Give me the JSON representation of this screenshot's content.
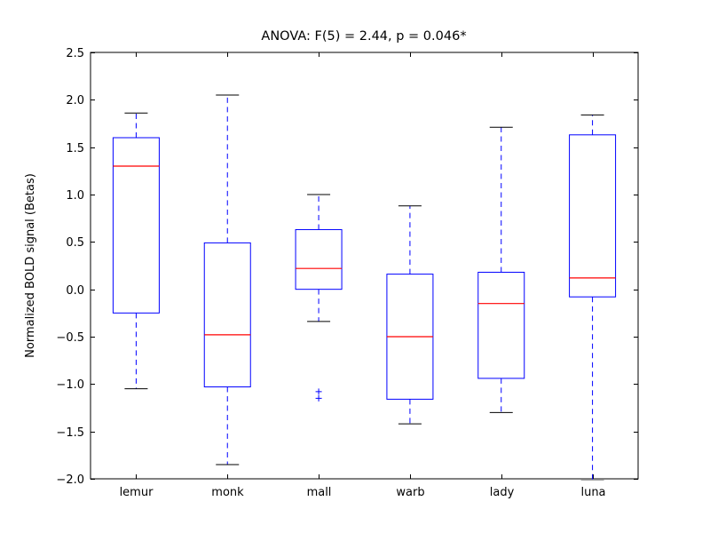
{
  "chart_data": {
    "type": "box",
    "title": "ANOVA: F(5) = 2.44, p = 0.046*",
    "xlabel": "",
    "ylabel": "Normalized BOLD signal (Betas)",
    "categories": [
      "lemur",
      "monk",
      "mall",
      "warb",
      "lady",
      "luna"
    ],
    "ylim": [
      -2.0,
      2.5
    ],
    "ytick_values": [
      -2.0,
      -1.5,
      -1.0,
      -0.5,
      0.0,
      0.5,
      1.0,
      1.5,
      2.0,
      2.5
    ],
    "ytick_labels": [
      "−2.0",
      "−1.5",
      "−1.0",
      "−0.5",
      "0.0",
      "0.5",
      "1.0",
      "1.5",
      "2.0",
      "2.5"
    ],
    "grid": false,
    "legend": null,
    "boxes": [
      {
        "label": "lemur",
        "whislo": -1.05,
        "q1": -0.25,
        "med": 1.3,
        "q3": 1.6,
        "whishi": 1.86,
        "fliers": []
      },
      {
        "label": "monk",
        "whislo": -1.85,
        "q1": -1.03,
        "med": -0.48,
        "q3": 0.49,
        "whishi": 2.05,
        "fliers": []
      },
      {
        "label": "mall",
        "whislo": -0.34,
        "q1": 0.0,
        "med": 0.22,
        "q3": 0.63,
        "whishi": 1.0,
        "fliers": [
          -1.08,
          -1.15
        ]
      },
      {
        "label": "warb",
        "whislo": -1.42,
        "q1": -1.16,
        "med": -0.5,
        "q3": 0.16,
        "whishi": 0.88,
        "fliers": []
      },
      {
        "label": "lady",
        "whislo": -1.3,
        "q1": -0.94,
        "med": -0.15,
        "q3": 0.18,
        "whishi": 1.71,
        "fliers": []
      },
      {
        "label": "luna",
        "whislo": -2.02,
        "q1": -0.08,
        "med": 0.12,
        "q3": 1.63,
        "whishi": 1.84,
        "fliers": []
      }
    ],
    "colors": {
      "box": "#0000ff",
      "median": "#ff0000",
      "whisker": "#0000ff",
      "cap": "#000000",
      "flier": "#0000ff",
      "axis": "#000000",
      "background": "#ffffff"
    }
  }
}
